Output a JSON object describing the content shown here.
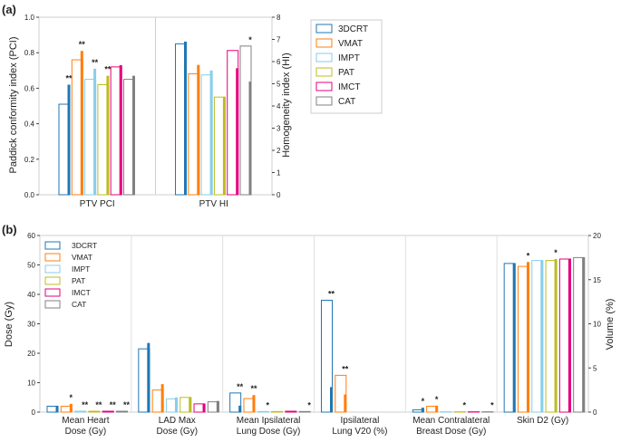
{
  "colors": {
    "3DCRT": "#1f77b4",
    "VMAT": "#ff7f0e",
    "IMPT": "#87ceeb",
    "PAT": "#bcbd22",
    "IMCT": "#e6007e",
    "CAT": "#808080"
  },
  "chart_data": [
    {
      "panel_label": "(a)",
      "type": "bar",
      "style": "paired hollow bar (left axis) + thin filled bar (right axis) per modality",
      "categories": [
        "PTV PCI",
        "PTV HI"
      ],
      "ylabel": "Paddick conformity index (PCI)",
      "ylim": [
        0,
        1.0
      ],
      "yticks": [
        "0.0",
        "0.2",
        "0.4",
        "0.6",
        "0.8",
        "1.0"
      ],
      "ylabel_right": "Homogeneity index (HI)",
      "ylim_right": [
        0,
        8
      ],
      "yticks_right": [
        "0",
        "1",
        "2",
        "3",
        "4",
        "5",
        "6",
        "7",
        "8"
      ],
      "legend": [
        "3DCRT",
        "VMAT",
        "IMPT",
        "PAT",
        "IMCT",
        "CAT"
      ],
      "legend_position": "upper-right outside",
      "series": [
        {
          "name": "3DCRT",
          "pci_hollow": 0.51,
          "pci_filled": 0.62,
          "hi_hollow": 6.8,
          "hi_filled": 6.9,
          "pci_sig": "**",
          "hi_sig": ""
        },
        {
          "name": "VMAT",
          "pci_hollow": 0.76,
          "pci_filled": 0.81,
          "hi_hollow": 5.45,
          "hi_filled": 5.85,
          "pci_sig": "**",
          "hi_sig": ""
        },
        {
          "name": "IMPT",
          "pci_hollow": 0.65,
          "pci_filled": 0.71,
          "hi_hollow": 5.4,
          "hi_filled": 5.6,
          "pci_sig": "**",
          "hi_sig": ""
        },
        {
          "name": "PAT",
          "pci_hollow": 0.62,
          "pci_filled": 0.67,
          "hi_hollow": 4.4,
          "hi_filled": 4.4,
          "pci_sig": "**",
          "hi_sig": ""
        },
        {
          "name": "IMCT",
          "pci_hollow": 0.72,
          "pci_filled": 0.73,
          "hi_hollow": 6.5,
          "hi_filled": 5.7,
          "pci_sig": "",
          "hi_sig": ""
        },
        {
          "name": "CAT",
          "pci_hollow": 0.65,
          "pci_filled": 0.67,
          "hi_hollow": 6.7,
          "hi_filled": 5.1,
          "pci_sig": "",
          "hi_sig": "*"
        }
      ]
    },
    {
      "panel_label": "(b)",
      "type": "bar",
      "style": "paired hollow bar (mean) + thin filled bar per modality",
      "categories": [
        "Mean Heart\nDose (Gy)",
        "LAD Max\nDose (Gy)",
        "Mean Ipsilateral\nLung Dose (Gy)",
        "Ipsilateral\nLung V20 (%)",
        "Mean Contralateral\nBreast Dose (Gy)",
        "Skin D2 (Gy)"
      ],
      "ylabel": "Dose (Gy)",
      "ylim": [
        0,
        60
      ],
      "yticks": [
        "0",
        "10",
        "20",
        "30",
        "40",
        "50",
        "60"
      ],
      "ylabel_right": "Volume (%)",
      "ylim_right": [
        0,
        20
      ],
      "yticks_right": [
        "0",
        "5",
        "10",
        "15",
        "20"
      ],
      "legend": [
        "3DCRT",
        "VMAT",
        "IMPT",
        "PAT",
        "IMCT",
        "CAT"
      ],
      "legend_position": "upper-left",
      "values_hollow": {
        "3DCRT": [
          2.0,
          21.5,
          6.5,
          38.0,
          0.8,
          50.5
        ],
        "VMAT": [
          2.0,
          7.5,
          4.6,
          12.5,
          2.0,
          49.5
        ],
        "IMPT": [
          0.3,
          4.5,
          0.2,
          0.0,
          0.1,
          51.5
        ],
        "PAT": [
          0.3,
          5.0,
          0.2,
          0.0,
          0.1,
          51.5
        ],
        "IMCT": [
          0.3,
          2.8,
          0.3,
          0.0,
          0.1,
          52.0
        ],
        "CAT": [
          0.3,
          3.5,
          0.2,
          0.0,
          0.1,
          52.5
        ]
      },
      "values_filled": {
        "3DCRT": [
          2.0,
          23.5,
          2.2,
          8.5,
          1.5,
          50.5
        ],
        "VMAT": [
          2.8,
          9.5,
          5.8,
          6.0,
          2.2,
          51.0
        ],
        "IMPT": [
          0.3,
          5.0,
          0.2,
          0.0,
          0.1,
          51.5
        ],
        "PAT": [
          0.3,
          5.0,
          0.2,
          0.0,
          0.1,
          52.0
        ],
        "IMCT": [
          0.3,
          2.8,
          0.3,
          0.0,
          0.1,
          52.0
        ],
        "CAT": [
          0.3,
          3.8,
          0.2,
          0.0,
          0.1,
          52.5
        ]
      },
      "significance": {
        "3DCRT": [
          "",
          "",
          "**",
          "**",
          "*",
          ""
        ],
        "VMAT": [
          "*",
          "",
          "**",
          "**",
          "*",
          "*"
        ],
        "IMPT": [
          "**",
          "",
          "*",
          "",
          "",
          ""
        ],
        "PAT": [
          "**",
          "",
          "",
          "",
          "*",
          "*"
        ],
        "IMCT": [
          "**",
          "",
          "",
          "",
          "",
          ""
        ],
        "CAT": [
          "**",
          "",
          "*",
          "",
          "*",
          ""
        ]
      }
    }
  ]
}
